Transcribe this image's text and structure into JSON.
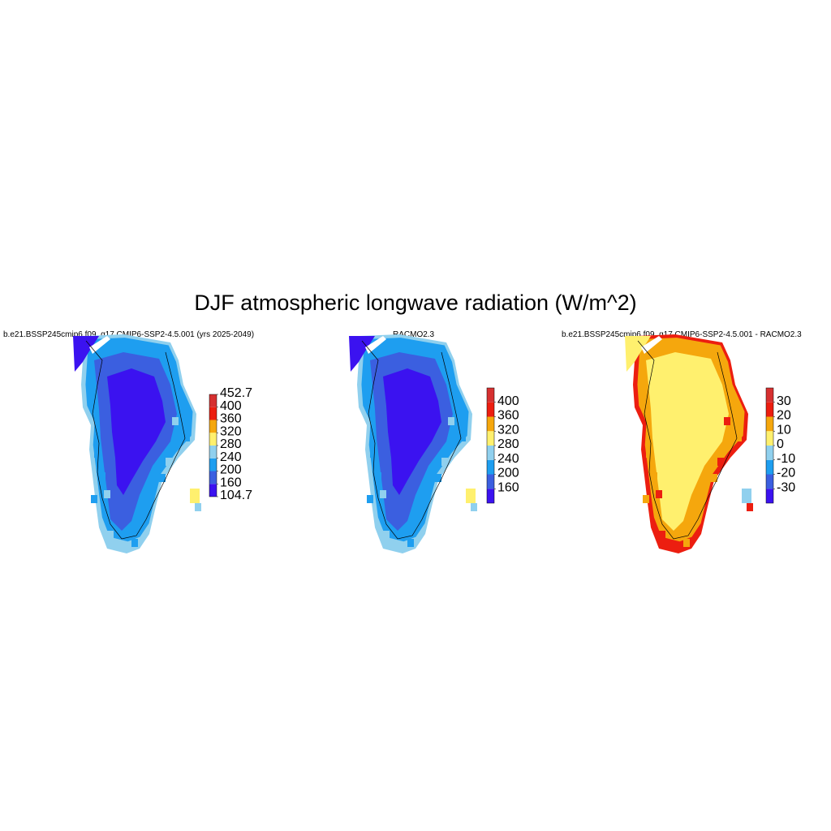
{
  "figure": {
    "title": "DJF atmospheric longwave radiation (W/m^2)"
  },
  "panels": [
    {
      "id": "model",
      "title": "b.e21.BSSP245cmip6.f09_g17.CMIP6-SSP2-4.5.001 (yrs 2025-2049)",
      "colorbar": {
        "colors": [
          "#3b12f0",
          "#3b5fe0",
          "#1e9ef0",
          "#90d0ee",
          "#fff06e",
          "#f5a70d",
          "#ec1e10",
          "#d63030"
        ],
        "labels": [
          "104.7",
          "160",
          "200",
          "240",
          "280",
          "320",
          "360",
          "400",
          "452.7"
        ]
      },
      "fill": {
        "interior": "#3b12f0",
        "mid": "#3b5fe0",
        "edge": "#1e9ef0",
        "coast": "#90d0ee",
        "warm": "#fff06e"
      }
    },
    {
      "id": "racmo",
      "title": "RACMO2.3",
      "colorbar": {
        "colors": [
          "#3b12f0",
          "#3b5fe0",
          "#1e9ef0",
          "#90d0ee",
          "#fff06e",
          "#f5a70d",
          "#ec1e10",
          "#d63030"
        ],
        "labels": [
          "160",
          "200",
          "240",
          "280",
          "320",
          "360",
          "400"
        ]
      },
      "fill": {
        "interior": "#3b12f0",
        "mid": "#3b5fe0",
        "edge": "#1e9ef0",
        "coast": "#90d0ee",
        "warm": "#fff06e"
      }
    },
    {
      "id": "difference",
      "title": "b.e21.BSSP245cmip6.f09_g17.CMIP6-SSP2-4.5.001 - RACMO2.3",
      "colorbar": {
        "colors": [
          "#3b12f0",
          "#3b5fe0",
          "#1e9ef0",
          "#90d0ee",
          "#fff06e",
          "#f5a70d",
          "#ec1e10",
          "#d63030"
        ],
        "labels": [
          "-30",
          "-20",
          "-10",
          "0",
          "10",
          "20",
          "30"
        ]
      },
      "fill": {
        "interior": "#fff06e",
        "mid": "#fff06e",
        "edge": "#f5a70d",
        "coast": "#ec1e10",
        "warm": "#90d0ee"
      }
    }
  ]
}
